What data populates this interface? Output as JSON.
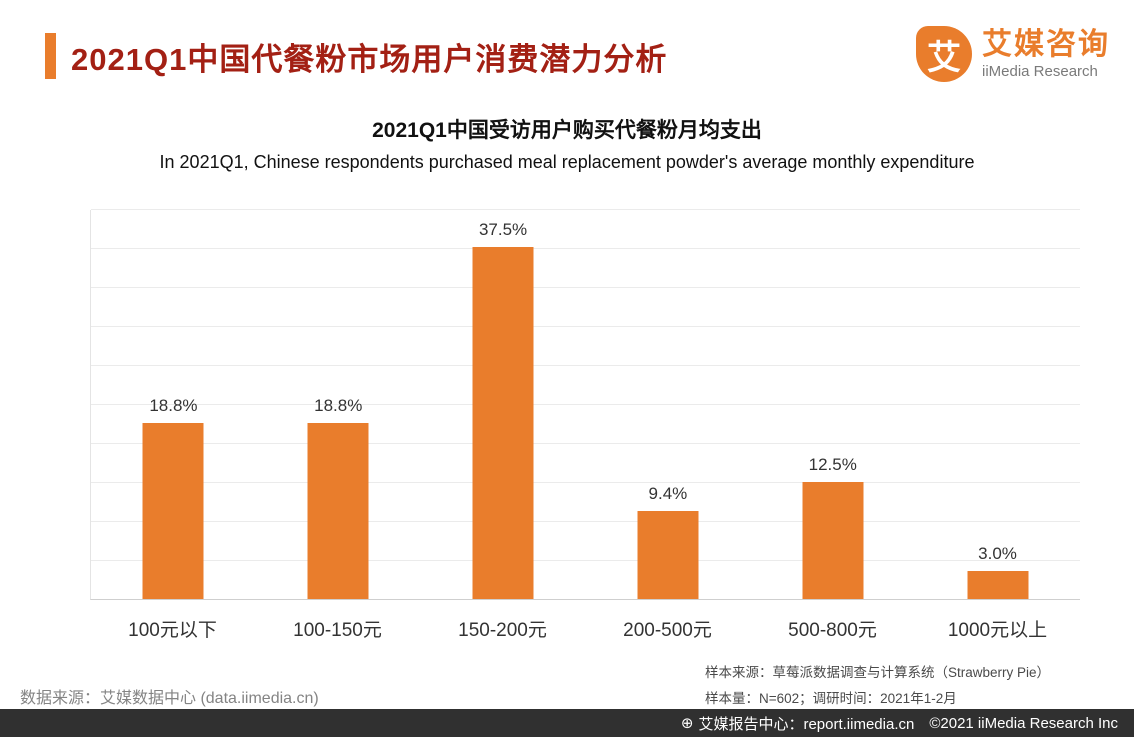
{
  "colors": {
    "accent": "#E97D2C",
    "title": "#A32014",
    "footer_bg": "#303030",
    "bar": "#E97D2C"
  },
  "header": {
    "title": "2021Q1中国代餐粉市场用户消费潜力分析",
    "logo": {
      "glyph": "艾",
      "brand_cn": "艾媒咨询",
      "brand_en": "iiMedia Research"
    }
  },
  "chart_data": {
    "type": "bar",
    "title": "2021Q1中国受访用户购买代餐粉月均支出",
    "subtitle": "In 2021Q1, Chinese respondents purchased meal replacement powder's average monthly expenditure",
    "categories": [
      "100元以下",
      "100-150元",
      "150-200元",
      "200-500元",
      "500-800元",
      "1000元以上"
    ],
    "values": [
      18.8,
      18.8,
      37.5,
      9.4,
      12.5,
      3.0
    ],
    "value_labels": [
      "18.8%",
      "18.8%",
      "37.5%",
      "9.4%",
      "12.5%",
      "3.0%"
    ],
    "bar_color": "#E97D2C",
    "ylim": [
      0,
      40
    ],
    "grid": true,
    "legend_position": "none",
    "xlabel": "",
    "ylabel": ""
  },
  "notes": {
    "data_source": "数据来源：艾媒数据中心 (data.iimedia.cn)",
    "sample_source": "样本来源：草莓派数据调查与计算系统（Strawberry Pie）",
    "sample_info": "样本量：N=602；调研时间：2021年1-2月"
  },
  "footer": {
    "icon_glyph": "⊕",
    "report_center": "艾媒报告中心：report.iimedia.cn",
    "copyright": "©2021  iiMedia Research Inc"
  }
}
